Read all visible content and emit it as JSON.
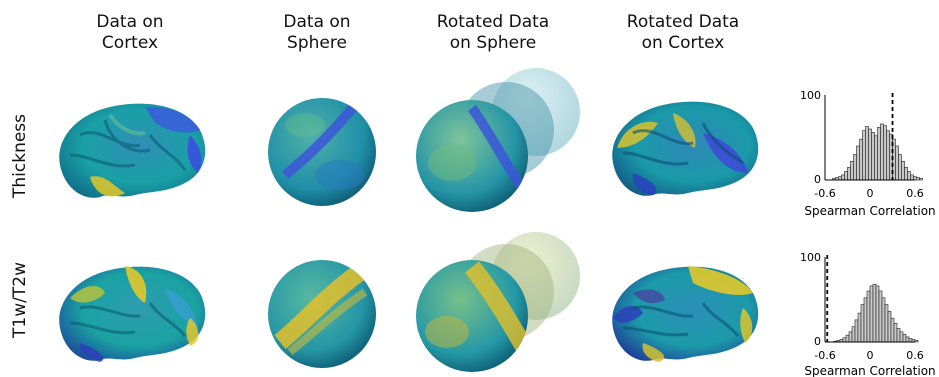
{
  "headers": {
    "col1": "Data on\nCortex",
    "col2": "Data on\nSphere",
    "col3": "Rotated Data\non Sphere",
    "col4": "Rotated Data\non Cortex"
  },
  "rows": [
    {
      "label": "Thickness"
    },
    {
      "label": "T1w/T2w"
    }
  ],
  "chart_data": [
    {
      "type": "bar",
      "title": "",
      "xlabel": "Spearman Correlation",
      "ylabel": "",
      "xlim": [
        -0.6,
        0.6
      ],
      "ylim": [
        0,
        100
      ],
      "x_ticks": [
        "-0.6",
        "0",
        "0.6"
      ],
      "y_ticks": [
        "0",
        "100"
      ],
      "bin_width": 0.04,
      "bin_start": -0.5,
      "values": [
        2,
        3,
        4,
        6,
        10,
        15,
        22,
        30,
        40,
        48,
        58,
        63,
        60,
        56,
        52,
        62,
        66,
        64,
        58,
        54,
        48,
        40,
        30,
        22,
        15,
        10,
        6,
        4,
        3,
        2
      ],
      "reference_line_x": 0.3
    },
    {
      "type": "bar",
      "title": "",
      "xlabel": "Spearman Correlation",
      "ylabel": "",
      "xlim": [
        -0.6,
        0.6
      ],
      "ylim": [
        0,
        100
      ],
      "x_ticks": [
        "-0.6",
        "0",
        "0.6"
      ],
      "y_ticks": [
        "0",
        "100"
      ],
      "bin_width": 0.04,
      "bin_start": -0.48,
      "values": [
        1,
        2,
        3,
        5,
        8,
        12,
        18,
        26,
        34,
        44,
        52,
        60,
        66,
        68,
        66,
        60,
        52,
        44,
        36,
        28,
        22,
        16,
        12,
        9,
        6,
        4,
        3,
        2
      ],
      "reference_line_x": -0.57
    }
  ]
}
